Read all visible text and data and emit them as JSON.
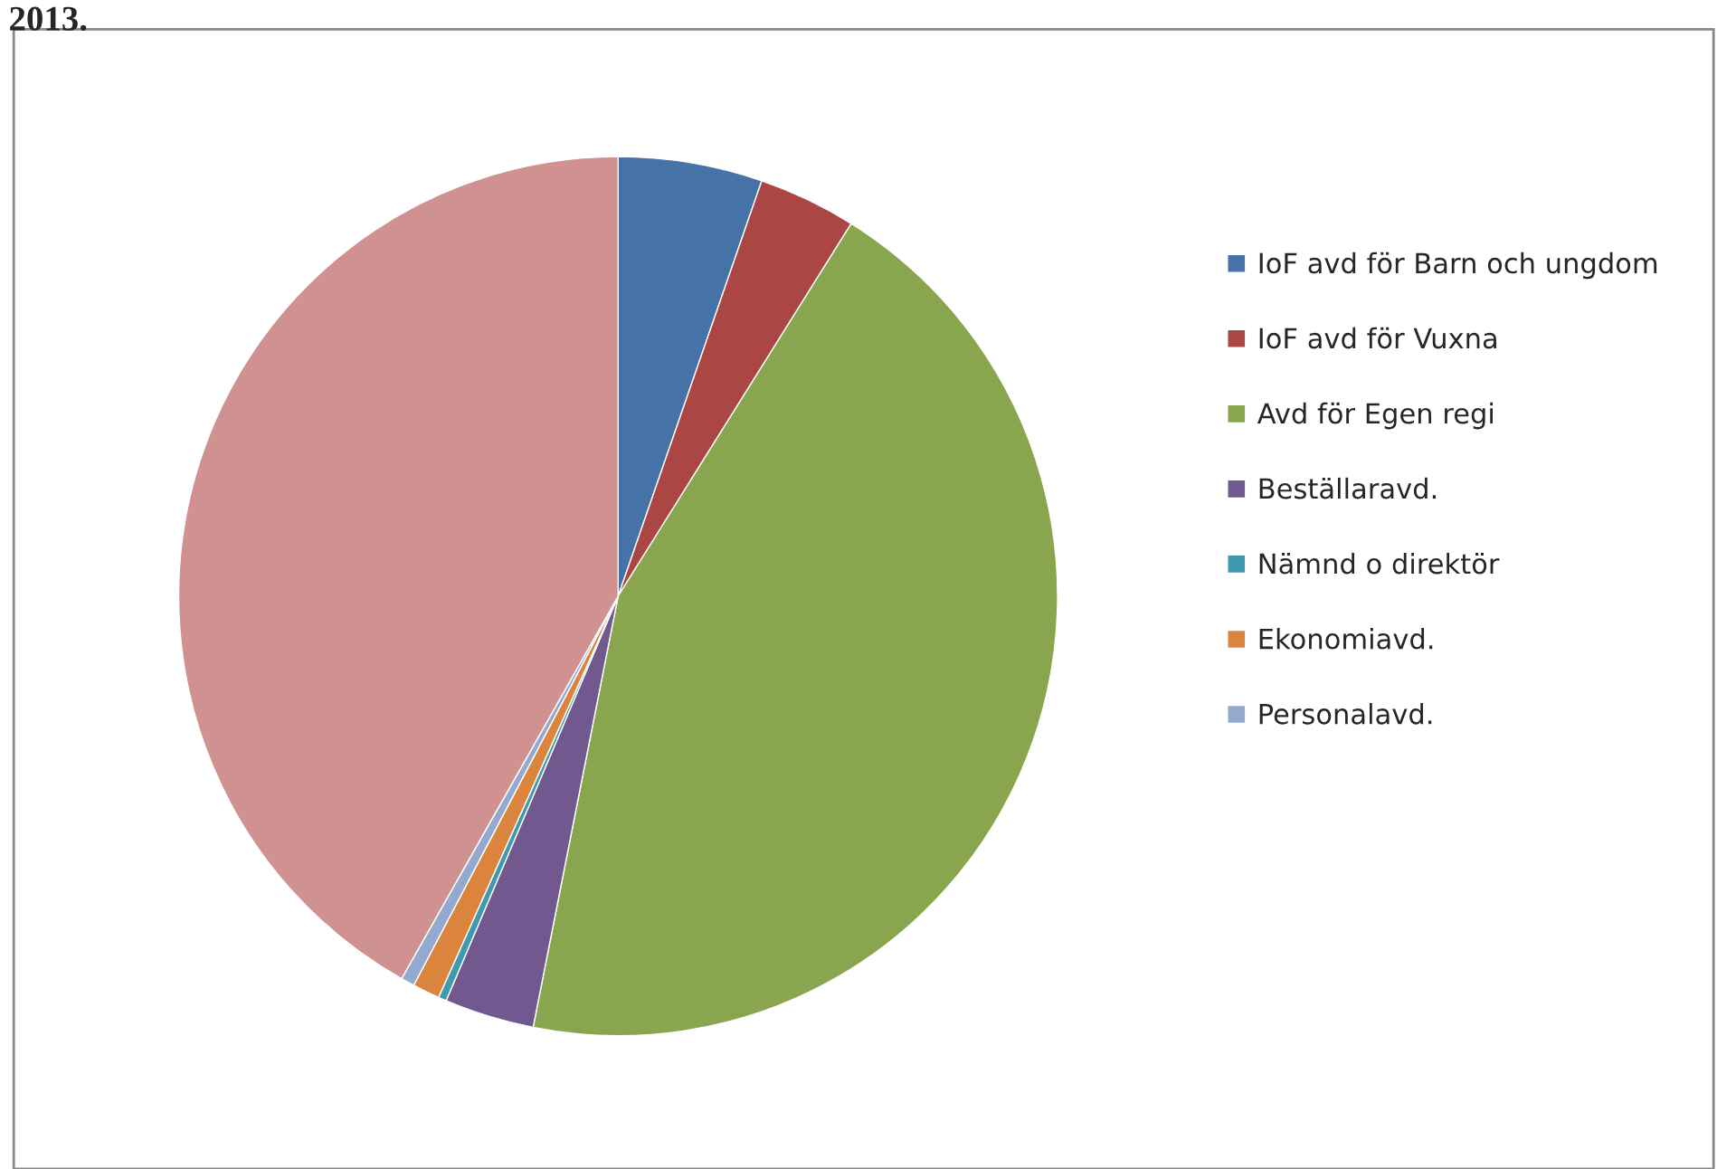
{
  "chart_data": {
    "type": "pie",
    "title": "2013.",
    "categories": [
      "IoF avd för Barn och ungdom",
      "IoF avd för Vuxna",
      "Avd för Egen regi",
      "Beställaravd.",
      "Nämnd o direktör",
      "Ekonomiavd.",
      "Personalavd.",
      null
    ],
    "values": [
      5.3,
      3.6,
      44.2,
      3.3,
      0.3,
      1.0,
      0.5,
      41.8
    ],
    "colors": [
      "#4572a7",
      "#aa4643",
      "#89a54e",
      "#71588f",
      "#4198af",
      "#db843d",
      "#93a9cf",
      "#d09291"
    ],
    "legend": "right"
  }
}
